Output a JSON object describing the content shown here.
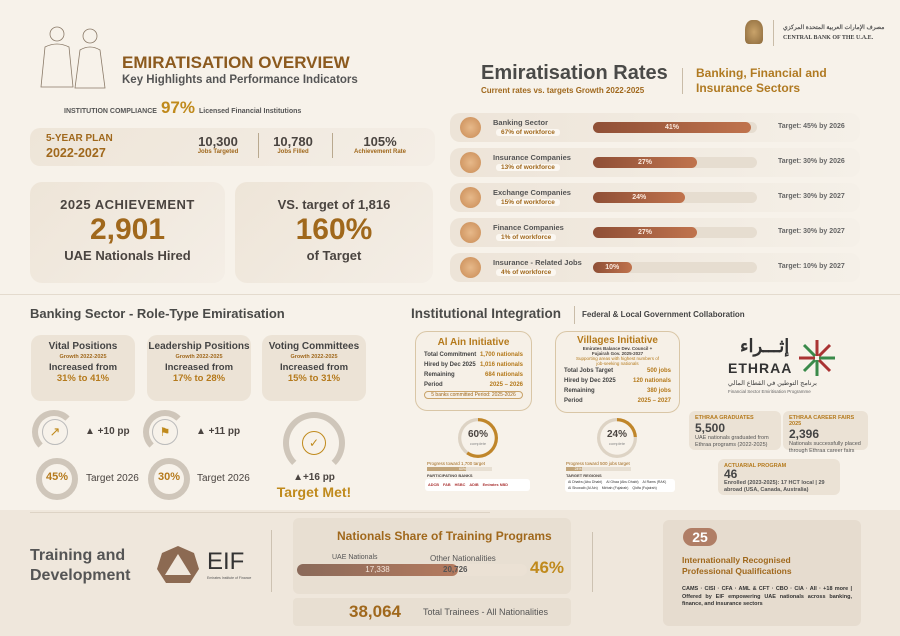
{
  "header": {
    "title": "EMIRATISATION OVERVIEW",
    "subtitle": "Key Highlights and Performance Indicators",
    "compliance_label": "INSTITUTION COMPLIANCE",
    "compliance_value": "97%",
    "compliance_desc": "Licensed Financial Institutions"
  },
  "plan": {
    "label": "5-YEAR PLAN",
    "years": "2022-2027",
    "stats": [
      {
        "value": "10,300",
        "label": "Jobs Targeted"
      },
      {
        "value": "10,780",
        "label": "Jobs Filled"
      },
      {
        "value": "105%",
        "label": "Achievement Rate"
      }
    ]
  },
  "achievement": {
    "title": "2025 ACHIEVEMENT",
    "value": "2,901",
    "label": "UAE Nationals Hired"
  },
  "vs_target": {
    "title": "VS. target of 1,816",
    "value": "160%",
    "label": "of Target"
  },
  "logo": {
    "arabic": "مصرف الإمارات العربية المتحدة المركزي",
    "english": "CENTRAL BANK OF THE U.A.E."
  },
  "rates": {
    "title": "Emiratisation Rates",
    "subtitle": "Current rates vs. targets Growth 2022-2025",
    "sector_title": "Banking, Financial and Insurance Sectors",
    "rows": [
      {
        "label": "Banking Sector",
        "workforce": "67% of workforce",
        "value": 41,
        "value_label": "41%",
        "target": "Target: 45% by 2026",
        "icon": "bank-icon"
      },
      {
        "label": "Insurance Companies",
        "workforce": "13% of workforce",
        "value": 27,
        "value_label": "27%",
        "target": "Target: 30% by 2026",
        "icon": "shield-icon"
      },
      {
        "label": "Exchange Companies",
        "workforce": "15% of workforce",
        "value": 24,
        "value_label": "24%",
        "target": "Target: 30% by 2027",
        "icon": "exchange-icon"
      },
      {
        "label": "Finance Companies",
        "workforce": "1% of workforce",
        "value": 27,
        "value_label": "27%",
        "target": "Target: 30% by 2027",
        "icon": "finance-icon"
      },
      {
        "label": "Insurance - Related Jobs",
        "workforce": "4% of workforce",
        "value": 10,
        "value_label": "10%",
        "target": "Target: 10% by 2027",
        "icon": "handshake-icon"
      }
    ]
  },
  "roles": {
    "title": "Banking Sector - Role-Type Emiratisation",
    "cards": [
      {
        "title": "Vital Positions",
        "growth": "Growth 2022-2025",
        "increased": "Increased from",
        "range": "31% to 41%",
        "delta": "▲ +10 pp",
        "target_value": "45%",
        "target_label": "Target 2026"
      },
      {
        "title": "Leadership Positions",
        "growth": "Growth 2022-2025",
        "increased": "Increased from",
        "range": "17% to 28%",
        "delta": "▲ +11 pp",
        "target_value": "30%",
        "target_label": "Target 2026"
      },
      {
        "title": "Voting Committees",
        "growth": "Growth 2022-2025",
        "increased": "Increased from",
        "range": "15% to 31%",
        "delta": "▲+16 pp",
        "status": "Target Met!"
      }
    ]
  },
  "integration": {
    "title": "Institutional Integration",
    "subtitle": "Federal & Local Government Collaboration",
    "al_ain": {
      "title": "Al Ain Initiative",
      "rows": [
        [
          "Total Commitment",
          "1,700 nationals"
        ],
        [
          "Hired by Dec 2025",
          "1,016 nationals"
        ],
        [
          "Remaining",
          "684 nationals"
        ],
        [
          "Period",
          "2025 – 2026"
        ]
      ],
      "note": "5 banks committed Period: 2025-2026",
      "progress": 60,
      "progress_label": "60%",
      "complete": "complete",
      "bar_label": "Progress toward 1,700 target",
      "bar_value": "60%",
      "banks_label": "PARTICIPATING BANKS",
      "banks": [
        "ADCB",
        "FAB",
        "HSBC",
        "ADIB",
        "Emirates NBD"
      ]
    },
    "villages": {
      "title": "Villages Initiative",
      "org": "Emirates Balance Dev. Council + Fujairah Gov. 2025-2027",
      "desc": "Supporting areas with highest numbers of job-seeking nationals",
      "rows": [
        [
          "Total Jobs Target",
          "500 jobs"
        ],
        [
          "Hired by Dec 2025",
          "120 nationals"
        ],
        [
          "Remaining",
          "380 jobs"
        ],
        [
          "Period",
          "2025 – 2027"
        ]
      ],
      "progress": 24,
      "progress_label": "24%",
      "complete": "complete",
      "bar_label": "Progress toward 500 jobs target",
      "bar_value": "24%",
      "regions_label": "TARGET REGIONS",
      "regions": [
        "Al Dhafra (Abu Dhabi)",
        "Al Ghaa (Abu Dhabi)",
        "Al Rams (RAK)",
        "Al Showaib (Al Ain)",
        "Mirbah (Fujairah)",
        "Qidfa (Fujairah)"
      ]
    }
  },
  "ethraa": {
    "arabic": "إثـــراء",
    "name": "ETHRAA",
    "arabic_sub": "برنامج التوطين في القطاع المالي",
    "english_sub": "Financial Sector Emiritisation Programme",
    "graduates": {
      "label": "ETHRAA GRADUATES",
      "value": "5,500",
      "desc": "UAE nationals graduated from Ethraa programs (2022-2025)"
    },
    "fairs": {
      "label": "ETHRAA CAREER FAIRS 2025",
      "value": "2,396",
      "desc": "Nationals successfully placed through Ethraa career fairs"
    },
    "actuarial": {
      "label": "ACTUARIAL PROGRAM",
      "value": "46",
      "desc": "Enrolled (2023-2025): 17 HCT local | 29 abroad (USA, Canada, Australia)"
    }
  },
  "training": {
    "title": "Training and Development",
    "eif": "EIF",
    "eif_sub": "Emirates Institute of Finance",
    "share_title": "Nationals Share of Training Programs",
    "nationals_label": "UAE Nationals",
    "nationals_value": "17,338",
    "others_label": "Other Nationalities",
    "others_value": "20,726",
    "share": 46,
    "share_label": "46%",
    "total_value": "38,064",
    "total_label": "Total Trainees - All Nationalities"
  },
  "qualifications": {
    "count": "25",
    "title": "Internationally Recognised Professional Qualifications",
    "desc": "CAMS · CISI · CFA · AML & CFT · CBO · CIA · AII · +18 more | Offered by EIF empowering UAE nationals across banking, finance, and insurance sectors"
  },
  "colors": {
    "gold": "#a0681c",
    "bar": "#a55e3f",
    "bg": "#f7f2ea"
  }
}
